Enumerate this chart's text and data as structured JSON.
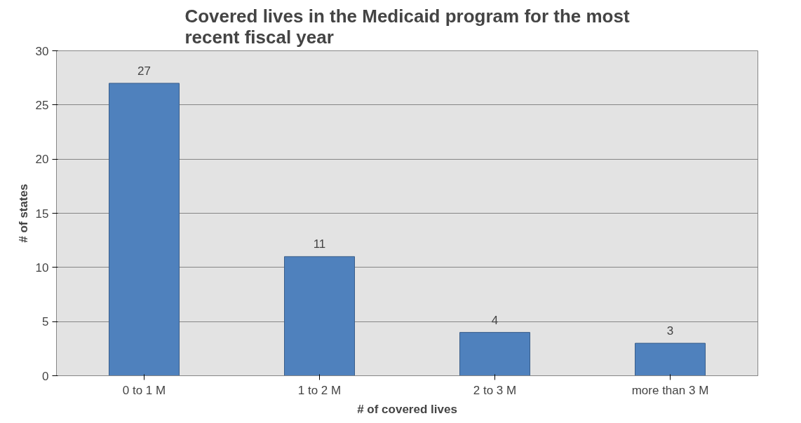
{
  "chart_data": {
    "type": "bar",
    "title": "Covered lives in the Medicaid program for the most recent fiscal year",
    "xlabel": "# of covered lives",
    "ylabel": "# of states",
    "categories": [
      "0 to 1 M",
      "1 to 2 M",
      "2 to 3 M",
      "more than 3 M"
    ],
    "values": [
      27,
      11,
      4,
      3
    ],
    "color": "#4f81bd",
    "ylim": [
      0,
      30
    ],
    "yticks": [
      0,
      5,
      10,
      15,
      20,
      25,
      30
    ],
    "grid": "y",
    "data_labels": true
  }
}
